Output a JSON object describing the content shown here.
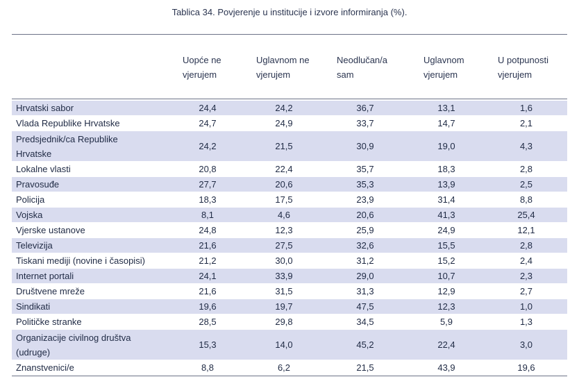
{
  "caption": "Tablica 34. Povjerenje u institucije i izvore informiranja (%).",
  "columns": [
    [
      "Uopće ne",
      "vjerujem"
    ],
    [
      "Uglavnom ne",
      "vjerujem"
    ],
    [
      "Neodlučan/a",
      "sam"
    ],
    [
      "Uglavnom",
      "vjerujem"
    ],
    [
      "U potpunosti",
      "vjerujem"
    ]
  ],
  "rows": [
    {
      "label": [
        "Hrvatski sabor"
      ],
      "values": [
        "24,4",
        "24,2",
        "36,7",
        "13,1",
        "1,6"
      ]
    },
    {
      "label": [
        "Vlada Republike Hrvatske"
      ],
      "values": [
        "24,7",
        "24,9",
        "33,7",
        "14,7",
        "2,1"
      ]
    },
    {
      "label": [
        "Predsjednik/ca Republike",
        "Hrvatske"
      ],
      "values": [
        "24,2",
        "21,5",
        "30,9",
        "19,0",
        "4,3"
      ]
    },
    {
      "label": [
        "Lokalne vlasti"
      ],
      "values": [
        "20,8",
        "22,4",
        "35,7",
        "18,3",
        "2,8"
      ]
    },
    {
      "label": [
        "Pravosuđe"
      ],
      "values": [
        "27,7",
        "20,6",
        "35,3",
        "13,9",
        "2,5"
      ]
    },
    {
      "label": [
        "Policija"
      ],
      "values": [
        "18,3",
        "17,5",
        "23,9",
        "31,4",
        "8,8"
      ]
    },
    {
      "label": [
        "Vojska"
      ],
      "values": [
        "8,1",
        "4,6",
        "20,6",
        "41,3",
        "25,4"
      ]
    },
    {
      "label": [
        "Vjerske ustanove"
      ],
      "values": [
        "24,8",
        "12,3",
        "25,9",
        "24,9",
        "12,1"
      ]
    },
    {
      "label": [
        "Televizija"
      ],
      "values": [
        "21,6",
        "27,5",
        "32,6",
        "15,5",
        "2,8"
      ]
    },
    {
      "label": [
        "Tiskani mediji (novine i časopisi)"
      ],
      "values": [
        "21,2",
        "30,0",
        "31,2",
        "15,2",
        "2,4"
      ]
    },
    {
      "label": [
        "Internet portali"
      ],
      "values": [
        "24,1",
        "33,9",
        "29,0",
        "10,7",
        "2,3"
      ]
    },
    {
      "label": [
        "Društvene mreže"
      ],
      "values": [
        "21,6",
        "31,5",
        "31,3",
        "12,9",
        "2,7"
      ]
    },
    {
      "label": [
        "Sindikati"
      ],
      "values": [
        "19,6",
        "19,7",
        "47,5",
        "12,3",
        "1,0"
      ]
    },
    {
      "label": [
        "Političke stranke"
      ],
      "values": [
        "28,5",
        "29,8",
        "34,5",
        "5,9",
        "1,3"
      ]
    },
    {
      "label": [
        "Organizacije civilnog društva",
        "(udruge)"
      ],
      "values": [
        "15,3",
        "14,0",
        "45,2",
        "22,4",
        "3,0"
      ]
    },
    {
      "label": [
        "Znanstvenici/e"
      ],
      "values": [
        "8,8",
        "6,2",
        "21,5",
        "43,9",
        "19,6"
      ]
    }
  ]
}
